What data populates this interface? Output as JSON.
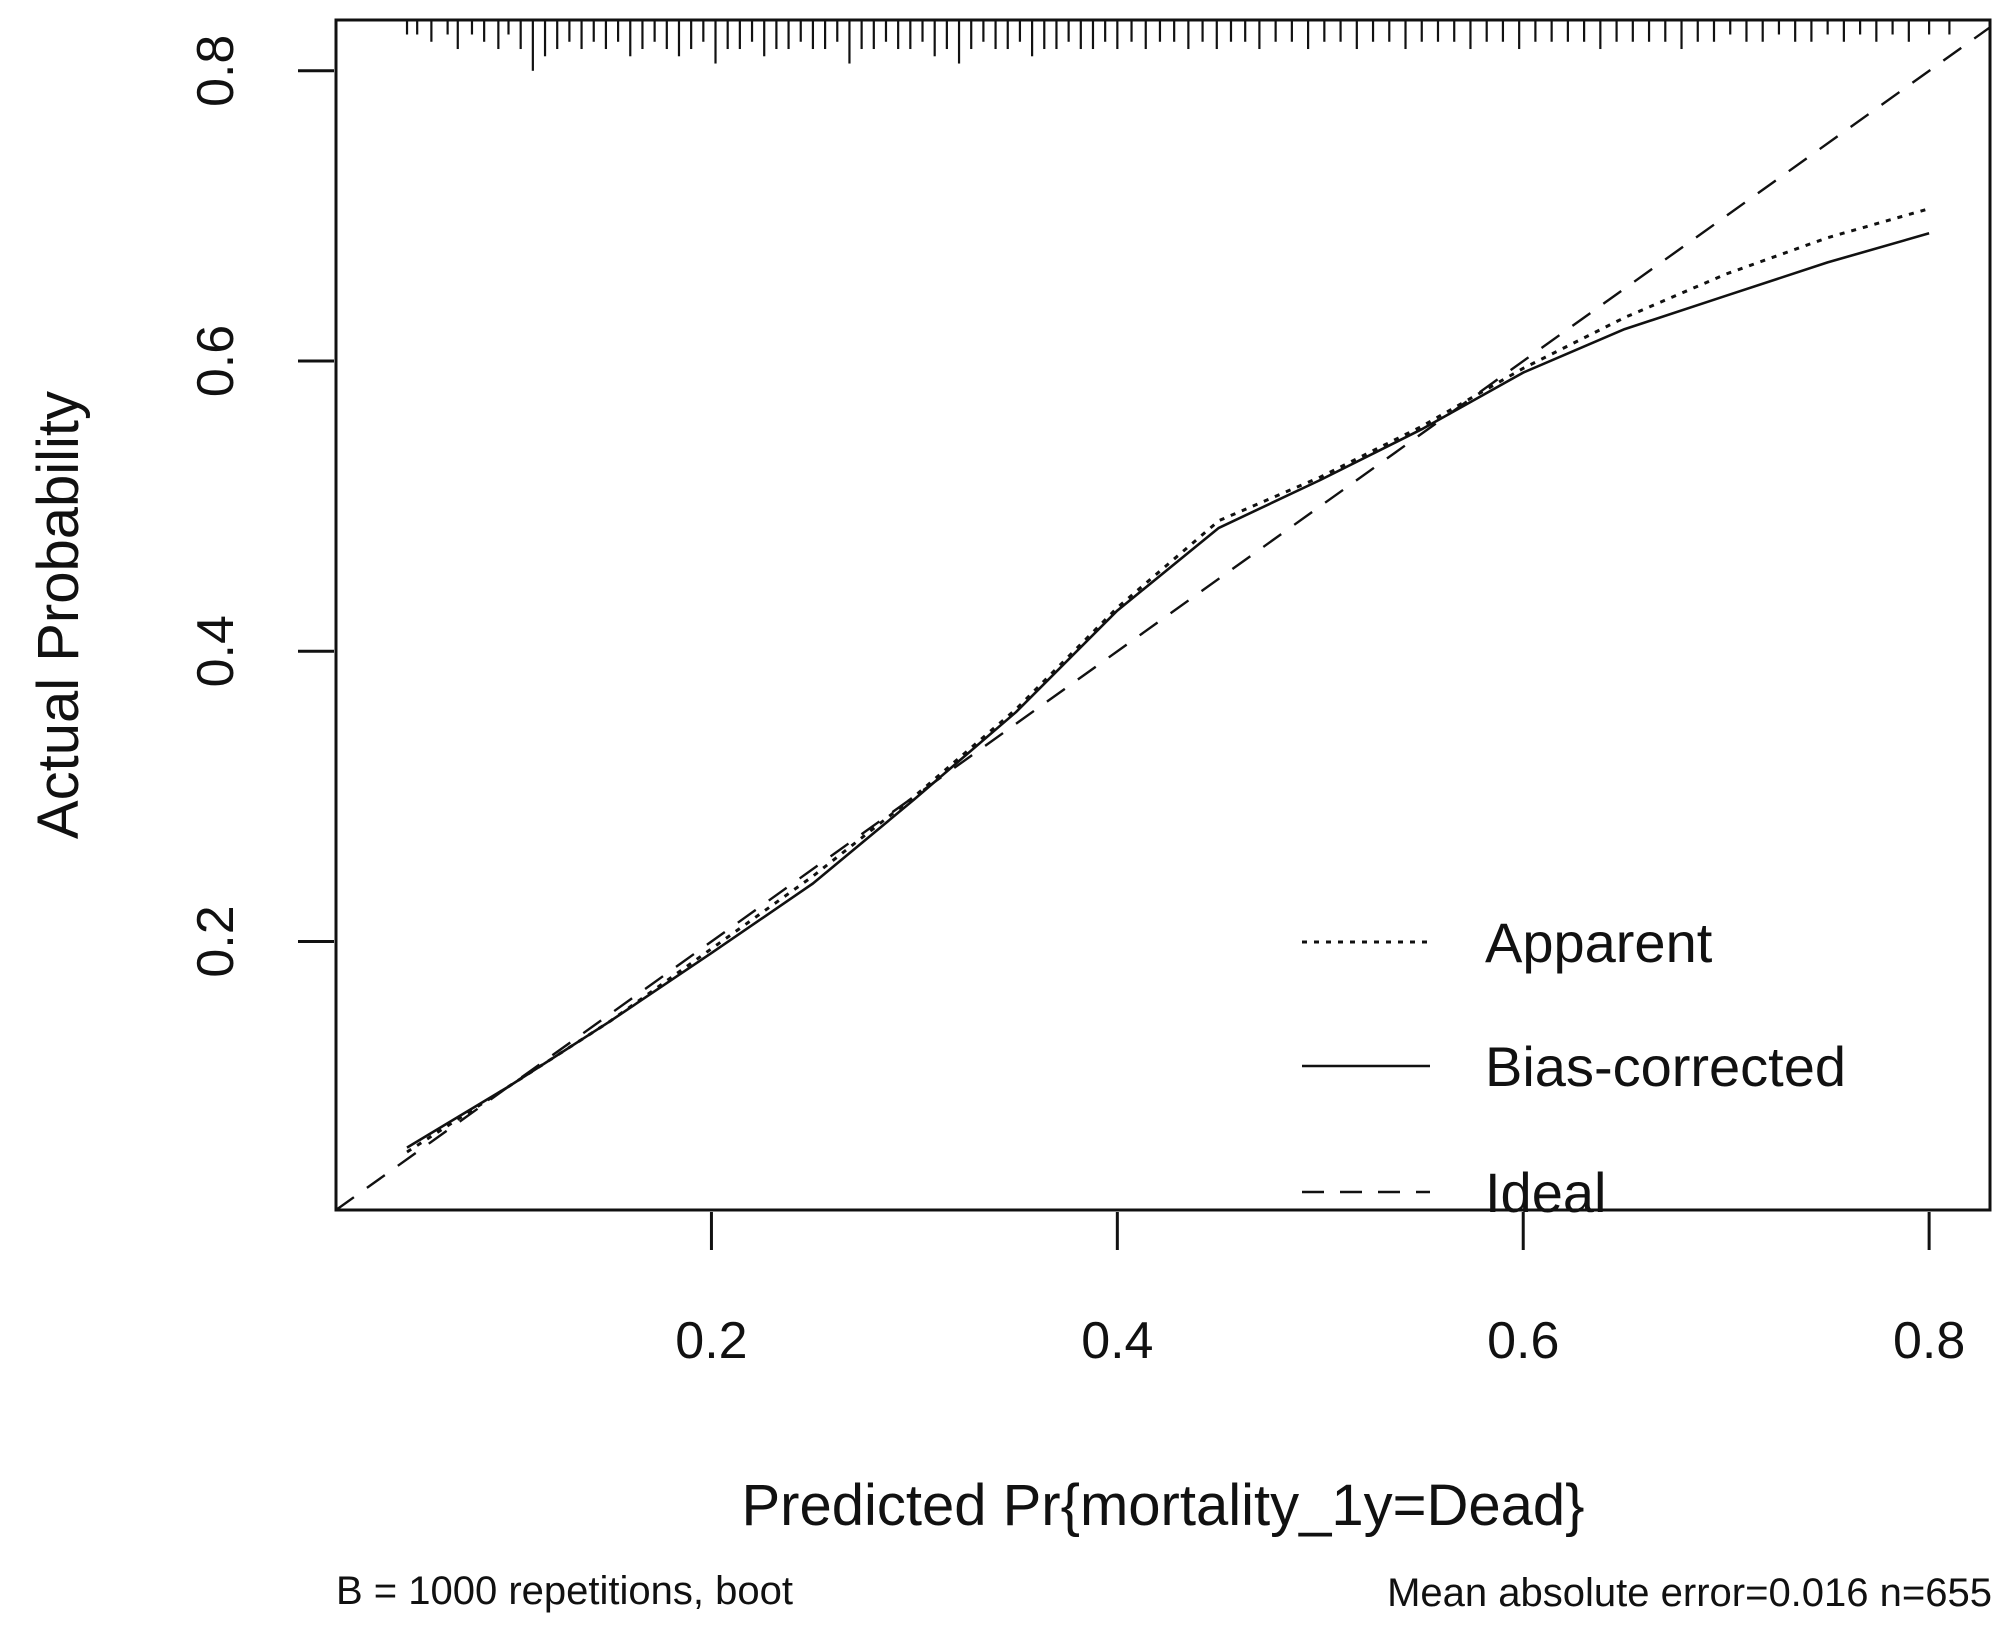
{
  "chart_data": {
    "type": "line",
    "xlabel": "Predicted Pr{mortality_1y=Dead}",
    "ylabel": "Actual Probability",
    "xlim": [
      0.015,
      0.83
    ],
    "ylim": [
      0.015,
      0.835
    ],
    "x_ticks": [
      0.2,
      0.4,
      0.6,
      0.8
    ],
    "x_tick_labels": [
      "0.2",
      "0.4",
      "0.6",
      "0.8"
    ],
    "y_ticks": [
      0.2,
      0.4,
      0.6,
      0.8
    ],
    "y_tick_labels": [
      "0.2",
      "0.4",
      "0.6",
      "0.8"
    ],
    "grid": false,
    "legend_position": "bottom-right",
    "series": [
      {
        "name": "Apparent",
        "style": "dotted",
        "x": [
          0.05,
          0.1,
          0.15,
          0.2,
          0.25,
          0.3,
          0.35,
          0.4,
          0.45,
          0.5,
          0.55,
          0.6,
          0.65,
          0.7,
          0.75,
          0.8
        ],
        "y": [
          0.055,
          0.1,
          0.145,
          0.195,
          0.245,
          0.3,
          0.36,
          0.43,
          0.49,
          0.52,
          0.555,
          0.595,
          0.63,
          0.66,
          0.685,
          0.705
        ]
      },
      {
        "name": "Bias-corrected",
        "style": "solid",
        "x": [
          0.05,
          0.1,
          0.15,
          0.2,
          0.25,
          0.3,
          0.35,
          0.4,
          0.45,
          0.5,
          0.55,
          0.6,
          0.65,
          0.7,
          0.75,
          0.8
        ],
        "y": [
          0.058,
          0.1,
          0.145,
          0.192,
          0.24,
          0.298,
          0.358,
          0.428,
          0.485,
          0.518,
          0.553,
          0.592,
          0.622,
          0.645,
          0.668,
          0.688
        ]
      },
      {
        "name": "Ideal",
        "style": "dashed",
        "x": [
          0.015,
          0.83
        ],
        "y": [
          0.015,
          0.83
        ]
      }
    ],
    "rug_x": [
      0.05,
      0.055,
      0.062,
      0.07,
      0.075,
      0.082,
      0.088,
      0.095,
      0.1,
      0.106,
      0.112,
      0.118,
      0.124,
      0.13,
      0.136,
      0.142,
      0.148,
      0.154,
      0.16,
      0.166,
      0.172,
      0.178,
      0.184,
      0.19,
      0.196,
      0.202,
      0.208,
      0.214,
      0.22,
      0.226,
      0.232,
      0.238,
      0.244,
      0.25,
      0.256,
      0.262,
      0.268,
      0.274,
      0.28,
      0.286,
      0.292,
      0.298,
      0.304,
      0.31,
      0.316,
      0.322,
      0.328,
      0.334,
      0.34,
      0.346,
      0.352,
      0.358,
      0.364,
      0.37,
      0.376,
      0.382,
      0.388,
      0.394,
      0.4,
      0.407,
      0.414,
      0.421,
      0.428,
      0.435,
      0.442,
      0.449,
      0.456,
      0.463,
      0.47,
      0.478,
      0.486,
      0.494,
      0.502,
      0.51,
      0.518,
      0.526,
      0.534,
      0.542,
      0.55,
      0.558,
      0.566,
      0.574,
      0.582,
      0.59,
      0.598,
      0.606,
      0.614,
      0.622,
      0.63,
      0.638,
      0.646,
      0.654,
      0.662,
      0.67,
      0.678,
      0.686,
      0.694,
      0.702,
      0.71,
      0.718,
      0.726,
      0.734,
      0.742,
      0.75,
      0.758,
      0.766,
      0.774,
      0.782,
      0.79,
      0.8,
      0.81
    ],
    "rug_h": [
      0.01,
      0.01,
      0.015,
      0.01,
      0.02,
      0.01,
      0.015,
      0.02,
      0.01,
      0.02,
      0.035,
      0.025,
      0.02,
      0.015,
      0.02,
      0.015,
      0.02,
      0.015,
      0.025,
      0.02,
      0.015,
      0.02,
      0.025,
      0.02,
      0.015,
      0.03,
      0.02,
      0.02,
      0.015,
      0.025,
      0.02,
      0.02,
      0.015,
      0.02,
      0.02,
      0.015,
      0.03,
      0.02,
      0.02,
      0.015,
      0.02,
      0.02,
      0.015,
      0.025,
      0.02,
      0.03,
      0.02,
      0.015,
      0.02,
      0.02,
      0.015,
      0.025,
      0.02,
      0.02,
      0.015,
      0.02,
      0.02,
      0.015,
      0.02,
      0.015,
      0.02,
      0.015,
      0.015,
      0.02,
      0.015,
      0.02,
      0.015,
      0.015,
      0.02,
      0.015,
      0.015,
      0.02,
      0.015,
      0.015,
      0.02,
      0.015,
      0.015,
      0.02,
      0.015,
      0.015,
      0.015,
      0.02,
      0.015,
      0.015,
      0.02,
      0.015,
      0.015,
      0.015,
      0.015,
      0.02,
      0.015,
      0.015,
      0.015,
      0.015,
      0.02,
      0.015,
      0.015,
      0.01,
      0.015,
      0.015,
      0.01,
      0.015,
      0.015,
      0.01,
      0.015,
      0.01,
      0.015,
      0.01,
      0.015,
      0.01,
      0.01
    ]
  },
  "footer": {
    "left_note": "B = 1000 repetitions, boot",
    "right_note": "Mean absolute error=0.016 n=655"
  }
}
